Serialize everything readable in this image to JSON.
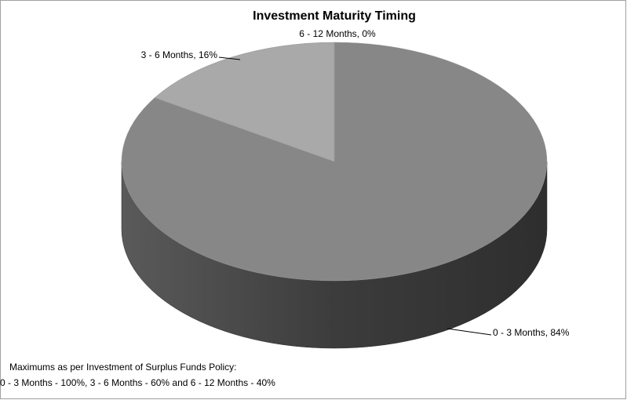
{
  "chart_data": {
    "type": "pie",
    "title": "Investment Maturity Timing",
    "values": [
      84,
      16,
      0
    ],
    "value_labels": [
      "0 - 3 Months, 84%",
      "3 - 6 Months, 16%",
      "6 - 12 Months, 0%"
    ],
    "colors": [
      "#878787",
      "#a9a9a9",
      "#c8c8c8"
    ],
    "notes": [
      "Maximums as per Investment of Surplus Funds Policy:",
      "0 - 3 Months - 100%, 3 - 6 Months  - 60% and 6 - 12 Months - 40%"
    ]
  }
}
